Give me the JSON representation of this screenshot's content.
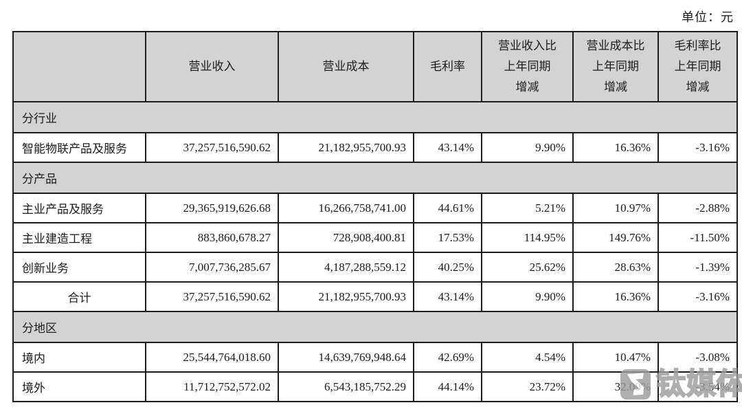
{
  "unit_label": "单位：元",
  "colors": {
    "header_bg": "#d3d3d3",
    "border": "#1d1d1d",
    "text": "#1c1c1c",
    "watermark_gray": "#9d9d9d"
  },
  "table": {
    "columns": [
      {
        "label": ""
      },
      {
        "label": "营业收入"
      },
      {
        "label": "营业成本"
      },
      {
        "label": "毛利率"
      },
      {
        "label": "营业收入比\n上年同期\n增减"
      },
      {
        "label": "营业成本比\n上年同期\n增减"
      },
      {
        "label": "毛利率比\n上年同期\n增减"
      }
    ],
    "rows": [
      {
        "type": "section",
        "label": "分行业"
      },
      {
        "type": "data",
        "label": "智能物联产品及服务",
        "values": [
          "37,257,516,590.62",
          "21,182,955,700.93",
          "43.14%",
          "9.90%",
          "16.36%",
          "-3.16%"
        ]
      },
      {
        "type": "section",
        "label": "分产品"
      },
      {
        "type": "data",
        "label": "主业产品及服务",
        "values": [
          "29,365,919,626.68",
          "16,266,758,741.00",
          "44.61%",
          "5.21%",
          "10.97%",
          "-2.88%"
        ]
      },
      {
        "type": "data",
        "label": "主业建造工程",
        "values": [
          "883,860,678.27",
          "728,908,400.81",
          "17.53%",
          "114.95%",
          "149.76%",
          "-11.50%"
        ]
      },
      {
        "type": "data",
        "label": "创新业务",
        "values": [
          "7,007,736,285.67",
          "4,187,288,559.12",
          "40.25%",
          "25.62%",
          "28.63%",
          "-1.39%"
        ]
      },
      {
        "type": "total",
        "label": "合计",
        "values": [
          "37,257,516,590.62",
          "21,182,955,700.93",
          "43.14%",
          "9.90%",
          "16.36%",
          "-3.16%"
        ]
      },
      {
        "type": "section",
        "label": "分地区"
      },
      {
        "type": "data",
        "label": "境内",
        "values": [
          "25,544,764,018.60",
          "14,639,769,948.64",
          "42.69%",
          "4.54%",
          "10.47%",
          "-3.08%"
        ]
      },
      {
        "type": "data",
        "label": "境外",
        "values": [
          "11,712,752,572.02",
          "6,543,185,752.29",
          "44.14%",
          "23.72%",
          "32.09%",
          "-3.54%"
        ]
      }
    ]
  },
  "watermark": {
    "text": "钛媒体",
    "icon": "tmtpost-logo"
  }
}
